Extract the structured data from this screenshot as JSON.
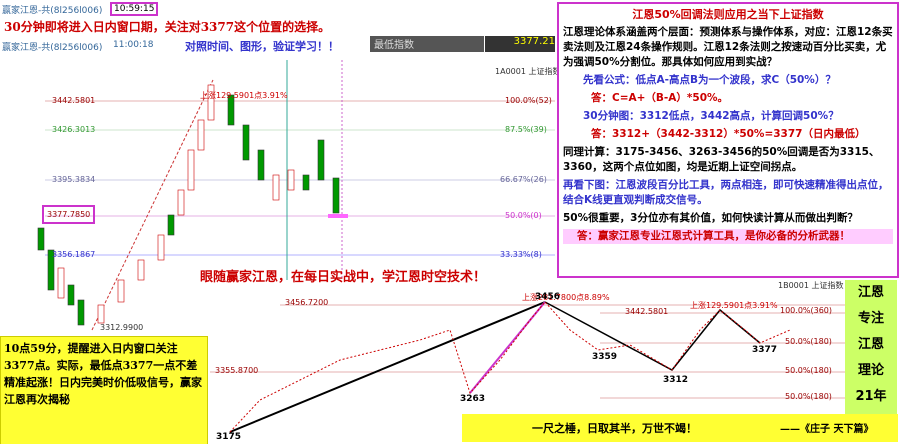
{
  "header": {
    "account_1": "赢家江恩-共(8l256l006)",
    "time_1": "10:59:15",
    "alert": "30分钟即将进入日内窗口期，关注对3377这个位置的选择。",
    "account_2": "赢家江恩-共(8l256l006)",
    "time_2": "11:00:18",
    "prompt": "对照时间、图形，验证学习！！",
    "min_label": "最低指数",
    "min_value": "3377.21"
  },
  "upper_chart": {
    "symbol": "1A0001 上证指数",
    "rise_label": "上涨129.5901点3.91%",
    "price_levels": [
      "3442.5801",
      "3426.3013",
      "3395.3834",
      "3377.7850",
      "3356.1867",
      "3312.9900"
    ],
    "ratio_levels": [
      "100.0%(52)",
      "87.5%(39)",
      "66.67%(26)",
      "50.0%(0)",
      "33.33%(8)"
    ]
  },
  "article": {
    "title": "江恩50%回调法则应用之当下上证指数",
    "paragraphs": [
      "江恩理论体系涵盖两个层面：预测体系与操作体系，对应：江恩12条买卖法则及江恩24条操作规则。江恩12条法则之按速动百分比买卖，尤为强调50%分割位。那具体如何应用到实战？",
      "先看公式：低点A-高点B为一个波段，求C（50%）？",
      "答：C=A+（B-A）*50%。",
      "30分钟图：3312低点，3442高点，计算回调50%？",
      "答：3312+（3442-3312）*50%=3377（日内最低）",
      "同理计算：3175-3456、3263-3456的50%回调是否为3315、3360，这两个点位如图，均是近期上证空间拐点。",
      "再看下图：江恩波段百分比工具，两点相连，即可快速精准得出点位，结合K线更直观判断成交信号。",
      "50%很重要，3分位亦有其价值，如何快读计算从而做出判断？",
      "答：赢家江恩专业江恩式计算工具，是你必备的分析武器！"
    ]
  },
  "banner": "眼随赢家江恩，在每日实战中，学江恩时空技术！",
  "lower_chart": {
    "symbol": "1B0001 上证指数",
    "price_levels": [
      "3456.7200",
      "3442.5801",
      "3355.8700"
    ],
    "rise_labels": [
      "上涨281.7800点8.89%",
      "上涨129.5901点3.91%"
    ],
    "ratio_levels": [
      "100.0%(360)",
      "50.0%(180)",
      "50.0%(180)",
      "50.0%(180)"
    ],
    "points": [
      "3456",
      "3359",
      "3312",
      "3377",
      "3263",
      "3175"
    ]
  },
  "note": "10点59分，提醒进入日内窗口关注3377点。实际，最低点3377一点不差精准起涨！日内完美时价低吸信号，赢家江恩再次揭秘",
  "side_tag": [
    "江恩",
    "专注",
    "江恩",
    "理论",
    "21年"
  ],
  "quote": {
    "text": "一尺之棰，日取其半，万世不竭！",
    "source": "——《庄子 天下篇》"
  }
}
